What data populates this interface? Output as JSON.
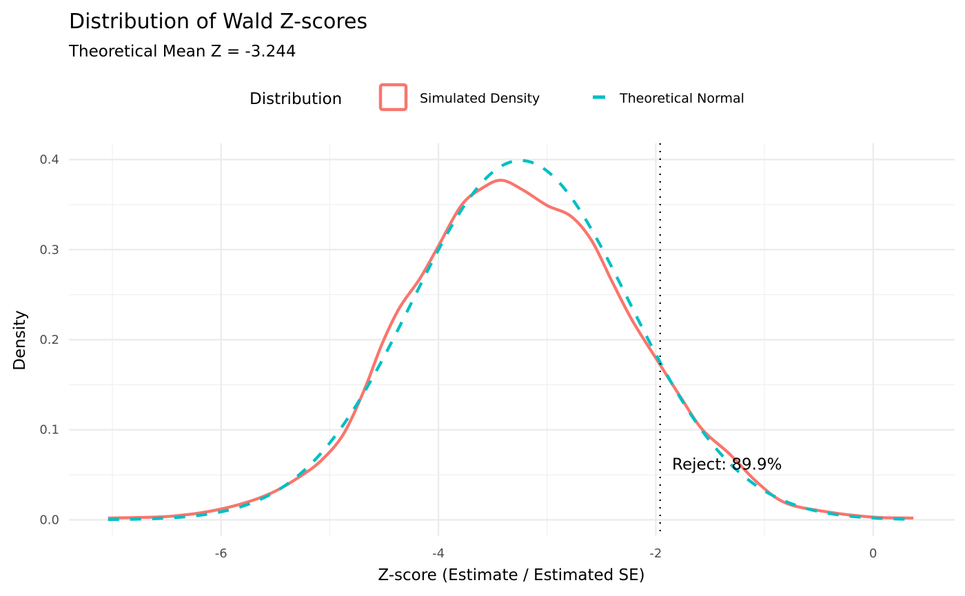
{
  "chart_data": {
    "type": "line",
    "title": "Distribution of Wald Z-scores",
    "subtitle": "Theoretical Mean Z = -3.244",
    "xlabel": "Z-score (Estimate / Estimated SE)",
    "ylabel": "Density",
    "xlim": [
      -7.4,
      0.75
    ],
    "ylim": [
      -0.018,
      0.418
    ],
    "x_ticks": [
      -6,
      -4,
      -2,
      0
    ],
    "x_tick_labels": [
      "-6",
      "-4",
      "-2",
      "0"
    ],
    "x_minor": [
      -7,
      -5,
      -3,
      -1
    ],
    "y_ticks": [
      0.0,
      0.1,
      0.2,
      0.3,
      0.4
    ],
    "y_tick_labels": [
      "0.0",
      "0.1",
      "0.2",
      "0.3",
      "0.4"
    ],
    "y_minor": [
      0.05,
      0.15,
      0.25,
      0.35
    ],
    "grid": true,
    "legend": {
      "title": "Distribution",
      "position": "top",
      "entries": [
        "Simulated Density",
        "Theoretical Normal"
      ]
    },
    "series": [
      {
        "name": "Simulated Density",
        "color": "#F8766D",
        "style": "solid",
        "x": [
          -7.04,
          -6.46,
          -6.0,
          -5.57,
          -5.25,
          -5.06,
          -4.87,
          -4.68,
          -4.52,
          -4.36,
          -4.17,
          -4.0,
          -3.79,
          -3.6,
          -3.42,
          -3.22,
          -3.0,
          -2.78,
          -2.59,
          -2.4,
          -2.21,
          -1.97,
          -1.76,
          -1.57,
          -1.32,
          -1.07,
          -0.81,
          -0.43,
          0.0,
          0.37
        ],
        "y": [
          0.002,
          0.004,
          0.012,
          0.028,
          0.05,
          0.068,
          0.096,
          0.145,
          0.195,
          0.235,
          0.268,
          0.304,
          0.349,
          0.368,
          0.377,
          0.366,
          0.349,
          0.337,
          0.31,
          0.264,
          0.22,
          0.174,
          0.134,
          0.1,
          0.073,
          0.042,
          0.019,
          0.009,
          0.003,
          0.002
        ]
      },
      {
        "name": "Theoretical Normal",
        "color": "#00BFC4",
        "style": "dashed",
        "distribution": "normal",
        "mean": -3.244,
        "sd": 1,
        "x_range": [
          -7.04,
          0.37
        ]
      }
    ],
    "vline": {
      "x": -1.96,
      "style": "dotted",
      "color": "#000000"
    },
    "annotations": [
      {
        "text": "Reject: 89.9%",
        "x": -1.85,
        "y": 0.056
      }
    ]
  }
}
